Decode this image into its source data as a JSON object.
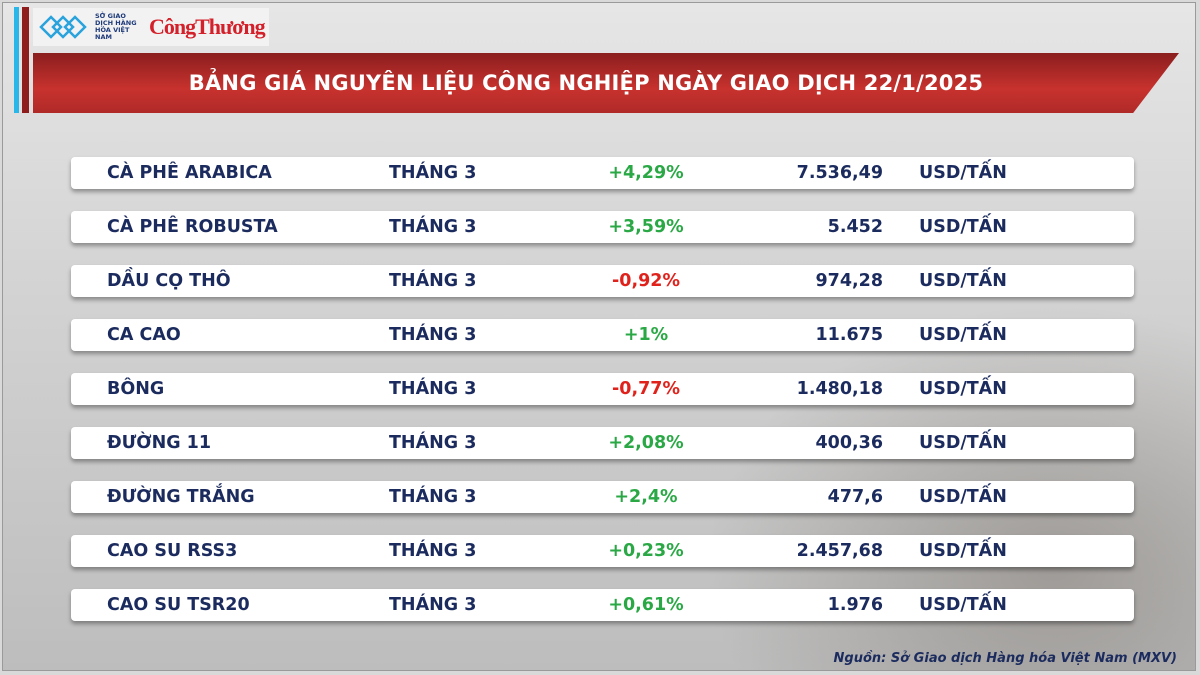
{
  "header": {
    "logo_mxv": "SỞ GIAO DỊCH HÀNG HÓA VIỆT NAM",
    "logo_ct": "CôngThương",
    "title": "BẢNG GIÁ NGUYÊN LIỆU CÔNG NGHIỆP NGÀY GIAO DỊCH 22/1/2025"
  },
  "colors": {
    "up": "#2aa845",
    "down": "#e0221c",
    "banner": "#c8322e",
    "text": "#1b2b5e"
  },
  "rows": [
    {
      "name": "CÀ PHÊ ARABICA",
      "month": "THÁNG 3",
      "change": "+4,29%",
      "dir": "up",
      "price": "7.536,49",
      "unit": "USD/TẤN"
    },
    {
      "name": "CÀ PHÊ ROBUSTA",
      "month": "THÁNG 3",
      "change": "+3,59%",
      "dir": "up",
      "price": "5.452",
      "unit": "USD/TẤN"
    },
    {
      "name": "DẦU CỌ THÔ",
      "month": "THÁNG 3",
      "change": "-0,92%",
      "dir": "down",
      "price": "974,28",
      "unit": "USD/TẤN"
    },
    {
      "name": "CA CAO",
      "month": "THÁNG 3",
      "change": "+1%",
      "dir": "up",
      "price": "11.675",
      "unit": "USD/TẤN"
    },
    {
      "name": "BÔNG",
      "month": "THÁNG 3",
      "change": "-0,77%",
      "dir": "down",
      "price": "1.480,18",
      "unit": "USD/TẤN"
    },
    {
      "name": "ĐƯỜNG 11",
      "month": "THÁNG 3",
      "change": "+2,08%",
      "dir": "up",
      "price": "400,36",
      "unit": "USD/TẤN"
    },
    {
      "name": "ĐƯỜNG TRẮNG",
      "month": "THÁNG 3",
      "change": "+2,4%",
      "dir": "up",
      "price": "477,6",
      "unit": "USD/TẤN"
    },
    {
      "name": "CAO SU RSS3",
      "month": "THÁNG 3",
      "change": "+0,23%",
      "dir": "up",
      "price": "2.457,68",
      "unit": "USD/TẤN"
    },
    {
      "name": "CAO SU TSR20",
      "month": "THÁNG 3",
      "change": "+0,61%",
      "dir": "up",
      "price": "1.976",
      "unit": "USD/TẤN"
    }
  ],
  "footer": {
    "source": "Nguồn: Sở Giao dịch Hàng hóa Việt Nam (MXV)"
  }
}
